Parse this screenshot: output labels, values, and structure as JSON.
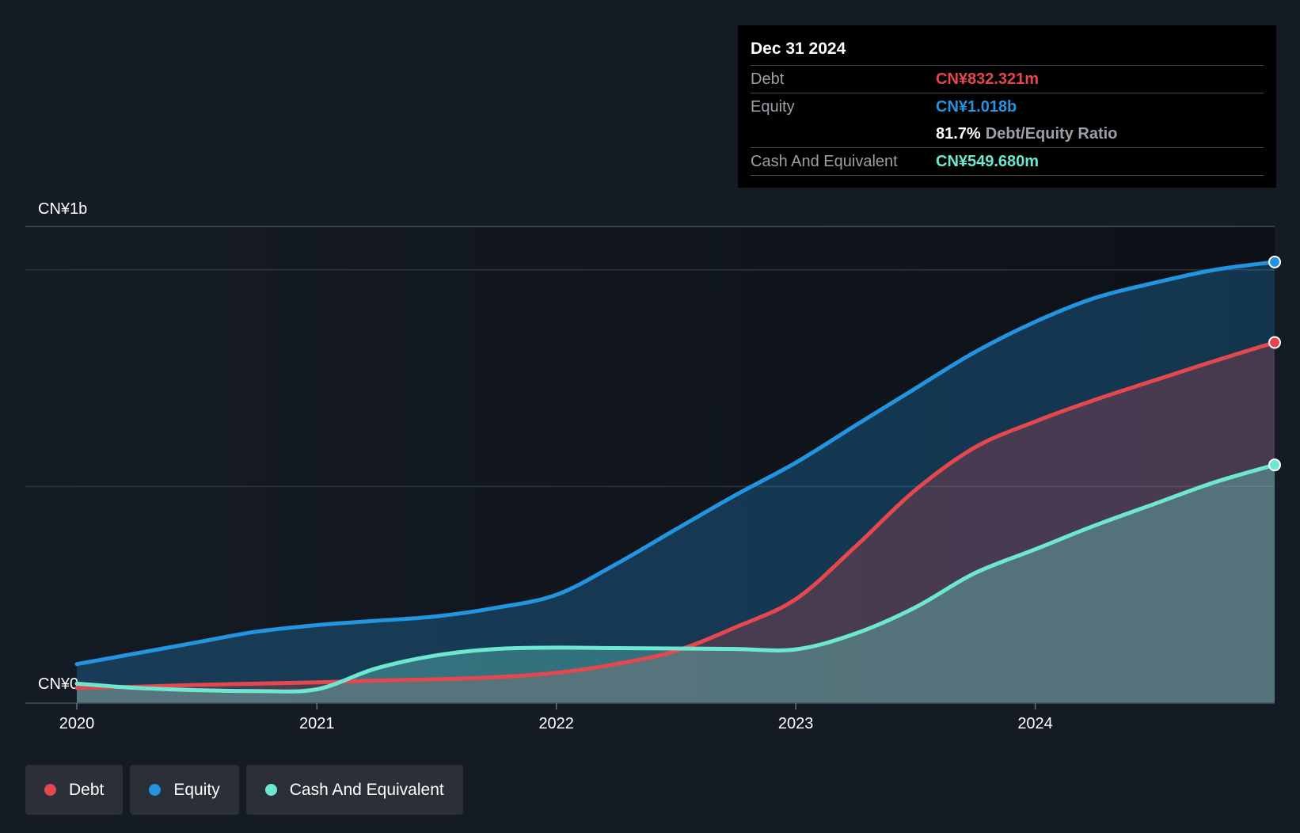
{
  "chart_data": {
    "type": "area",
    "x": [
      "2020-01",
      "2020-04",
      "2020-07",
      "2020-10",
      "2021-01",
      "2021-04",
      "2021-07",
      "2021-10",
      "2022-01",
      "2022-04",
      "2022-07",
      "2022-10",
      "2023-01",
      "2023-04",
      "2023-07",
      "2023-10",
      "2024-01",
      "2024-04",
      "2024-07",
      "2024-10",
      "2024-12-31"
    ],
    "series": [
      {
        "name": "Debt",
        "color": "#e5474e",
        "values": [
          35,
          38,
          42,
          45,
          48,
          52,
          55,
          60,
          70,
          90,
          120,
          175,
          240,
          360,
          490,
          590,
          650,
          700,
          745,
          790,
          832.321
        ]
      },
      {
        "name": "Equity",
        "color": "#2394df",
        "values": [
          90,
          115,
          140,
          165,
          180,
          190,
          200,
          220,
          250,
          320,
          400,
          480,
          555,
          640,
          725,
          810,
          880,
          935,
          970,
          1000,
          1018
        ]
      },
      {
        "name": "Cash And Equivalent",
        "color": "#6ee7d0",
        "values": [
          45,
          35,
          30,
          28,
          32,
          80,
          110,
          125,
          128,
          127,
          126,
          125,
          124,
          160,
          220,
          300,
          355,
          410,
          460,
          510,
          549.68
        ]
      }
    ],
    "x_ticks": [
      "2020",
      "2021",
      "2022",
      "2023",
      "2024"
    ],
    "y_ticks": [
      "CN¥0",
      "CN¥1b"
    ],
    "ylim": [
      0,
      1100
    ],
    "grid": true,
    "legend_position": "bottom-left"
  },
  "tooltip": {
    "date": "Dec 31 2024",
    "rows": [
      {
        "label": "Debt",
        "value": "CN¥832.321m",
        "color": "#e5474e"
      },
      {
        "label": "Equity",
        "value": "CN¥1.018b",
        "color": "#2394df"
      },
      {
        "label": "",
        "ratio_value": "81.7%",
        "ratio_label": "Debt/Equity Ratio"
      },
      {
        "label": "Cash And Equivalent",
        "value": "CN¥549.680m",
        "color": "#6ee7d0"
      }
    ]
  },
  "legend": [
    {
      "label": "Debt",
      "color": "#e5474e"
    },
    {
      "label": "Equity",
      "color": "#2394df"
    },
    {
      "label": "Cash And Equivalent",
      "color": "#6ee7d0"
    }
  ]
}
